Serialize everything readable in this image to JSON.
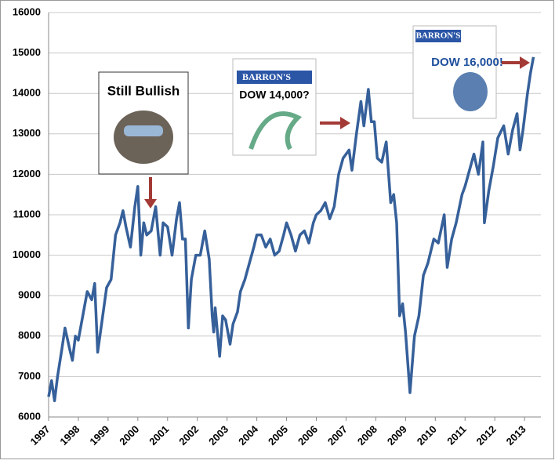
{
  "chart_data": {
    "type": "line",
    "annotations": [
      "Still Bullish",
      "BARRON'S",
      "DOW 14,000?",
      "BARRON'S",
      "DOW 16,000!"
    ],
    "x": [
      1997.0,
      1997.1,
      1997.2,
      1997.3,
      1997.45,
      1997.55,
      1997.7,
      1997.8,
      1997.9,
      1998.0,
      1998.15,
      1998.3,
      1998.45,
      1998.55,
      1998.65,
      1998.8,
      1998.95,
      1999.1,
      1999.25,
      1999.4,
      1999.5,
      1999.6,
      1999.75,
      1999.9,
      2000.0,
      2000.1,
      2000.2,
      2000.3,
      2000.45,
      2000.6,
      2000.75,
      2000.85,
      2001.0,
      2001.15,
      2001.3,
      2001.4,
      2001.5,
      2001.6,
      2001.7,
      2001.8,
      2001.95,
      2002.1,
      2002.25,
      2002.4,
      2002.5,
      2002.55,
      2002.6,
      2002.75,
      2002.85,
      2002.95,
      2003.1,
      2003.2,
      2003.35,
      2003.45,
      2003.6,
      2003.75,
      2003.9,
      2004.0,
      2004.15,
      2004.3,
      2004.45,
      2004.6,
      2004.75,
      2004.9,
      2005.0,
      2005.15,
      2005.3,
      2005.45,
      2005.6,
      2005.75,
      2005.9,
      2006.0,
      2006.15,
      2006.3,
      2006.45,
      2006.6,
      2006.75,
      2006.9,
      2007.1,
      2007.2,
      2007.35,
      2007.5,
      2007.6,
      2007.75,
      2007.85,
      2007.95,
      2008.05,
      2008.2,
      2008.35,
      2008.5,
      2008.6,
      2008.7,
      2008.8,
      2008.9,
      2009.0,
      2009.15,
      2009.3,
      2009.45,
      2009.6,
      2009.75,
      2009.95,
      2010.1,
      2010.3,
      2010.4,
      2010.55,
      2010.7,
      2010.9,
      2011.0,
      2011.3,
      2011.45,
      2011.6,
      2011.65,
      2011.8,
      2011.95,
      2012.1,
      2012.3,
      2012.45,
      2012.6,
      2012.75,
      2012.85,
      2012.95,
      2013.1,
      2013.2,
      2013.3
    ],
    "series": [
      {
        "color": "#36609a",
        "values": [
          6500,
          6900,
          6400,
          7000,
          7700,
          8200,
          7700,
          7400,
          8000,
          7900,
          8500,
          9100,
          8900,
          9300,
          7600,
          8400,
          9200,
          9400,
          10500,
          10800,
          11100,
          10700,
          10200,
          11200,
          11700,
          10000,
          10800,
          10500,
          10600,
          11200,
          10000,
          10800,
          10700,
          10000,
          10900,
          11300,
          10400,
          10400,
          8200,
          9400,
          10000,
          10000,
          10600,
          9900,
          8500,
          8100,
          8700,
          7500,
          8500,
          8400,
          7800,
          8300,
          8600,
          9100,
          9400,
          9800,
          10200,
          10500,
          10500,
          10200,
          10400,
          10000,
          10100,
          10500,
          10800,
          10500,
          10100,
          10500,
          10600,
          10300,
          10800,
          11000,
          11100,
          11300,
          10900,
          11200,
          12000,
          12400,
          12600,
          12100,
          13000,
          13800,
          13200,
          14100,
          13300,
          13300,
          12400,
          12300,
          12800,
          11300,
          11500,
          10800,
          8500,
          8800,
          8100,
          6600,
          8000,
          8500,
          9500,
          9800,
          10400,
          10300,
          11000,
          9700,
          10400,
          10800,
          11500,
          11700,
          12500,
          12000,
          12800,
          10800,
          11600,
          12200,
          12900,
          13200,
          12500,
          13100,
          13500,
          12600,
          13100,
          14000,
          14500,
          14900
        ]
      }
    ],
    "xlim": [
      1997,
      2013.55
    ],
    "xticks": [
      1997,
      1998,
      1999,
      2000,
      2001,
      2002,
      2003,
      2004,
      2005,
      2006,
      2007,
      2008,
      2009,
      2010,
      2011,
      2012,
      2013
    ],
    "ylim": [
      6000,
      16000
    ],
    "yticks": [
      6000,
      7000,
      8000,
      9000,
      10000,
      11000,
      12000,
      13000,
      14000,
      15000,
      16000
    ],
    "grid": true
  }
}
